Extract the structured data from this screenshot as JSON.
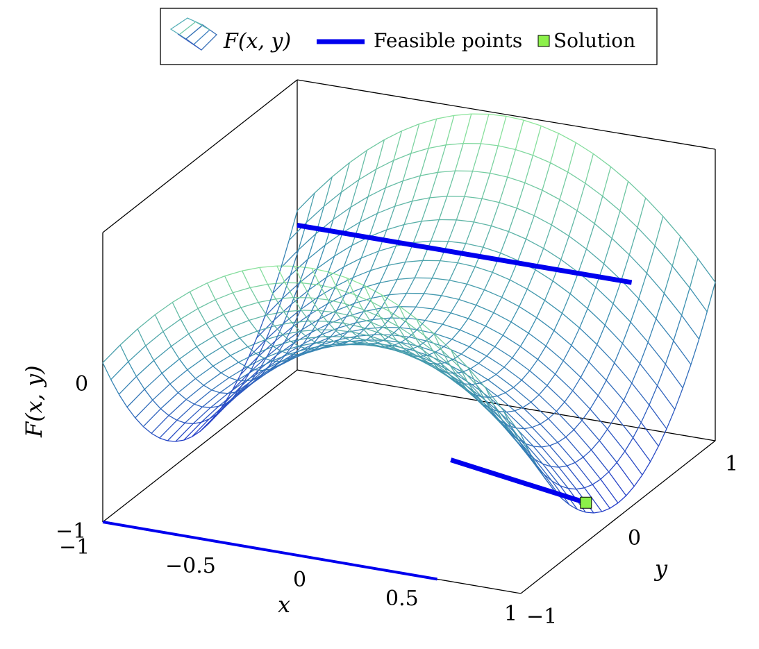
{
  "chart_data": {
    "type": "surface3d",
    "function": "F(x,y) = x^2 * y - y^3 style saddle surface (two ridges along y = ±1 ends, valley across x)",
    "z_label": "F(x, y)",
    "x_label": "x",
    "y_label": "y",
    "x_ticks": [
      "−1",
      "−0.5",
      "0",
      "0.5",
      "1"
    ],
    "y_ticks": [
      "−1",
      "0",
      "1"
    ],
    "z_ticks": [
      "−1",
      "0"
    ],
    "xlim": [
      -1,
      1
    ],
    "ylim": [
      -1,
      1
    ],
    "zlim": [
      -1,
      1
    ],
    "legend": {
      "placement": "top-center",
      "entries": [
        {
          "kind": "surface",
          "label": "F(x, y)"
        },
        {
          "kind": "line",
          "label": "Feasible points",
          "color": "#0000ee"
        },
        {
          "kind": "marker",
          "label": "Solution",
          "color": "#8cf04a"
        }
      ]
    },
    "feasible_lines": [
      {
        "name": "floor-x-line",
        "points": [
          [
            -1,
            -1,
            -1
          ],
          [
            0.6,
            -1,
            -1
          ]
        ]
      },
      {
        "name": "level-zero-line",
        "points": [
          [
            -1,
            1,
            0
          ],
          [
            0.6,
            1,
            0
          ]
        ]
      },
      {
        "name": "near-solution-line",
        "points": [
          [
            0.2,
            0,
            -0.8
          ],
          [
            0.8,
            0.1,
            -1
          ]
        ]
      }
    ],
    "solution_point": {
      "x": 0.8,
      "y": 0.1,
      "z": -1
    },
    "colors": {
      "low": "#2233cc",
      "mid": "#3a8fb0",
      "high": "#8fe89a",
      "feasible": "#0000ee",
      "solution": "#8cf04a"
    }
  }
}
